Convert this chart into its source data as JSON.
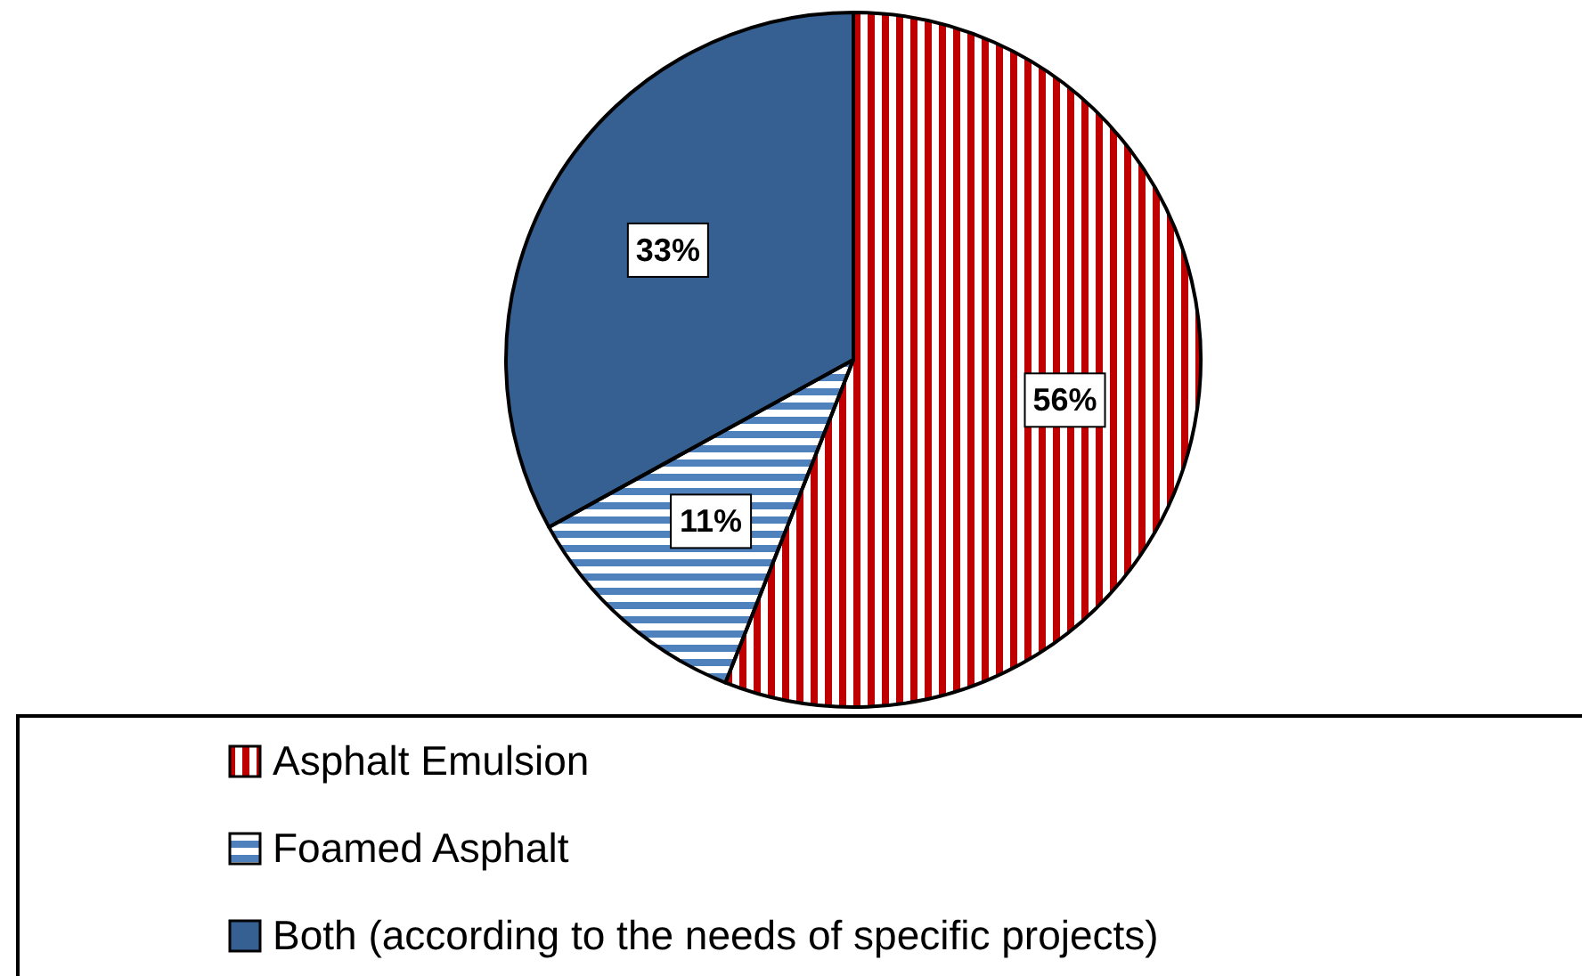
{
  "chart_data": {
    "type": "pie",
    "categories": [
      "Asphalt Emulsion",
      "Foamed Asphalt",
      "Both (according to the needs of specific projects)"
    ],
    "values": [
      56,
      11,
      33
    ],
    "colors": [
      "#c00000",
      "#4f81bd",
      "#366092"
    ],
    "value_labels": [
      "56%",
      "11%",
      "33%"
    ],
    "legend": "bottom"
  }
}
